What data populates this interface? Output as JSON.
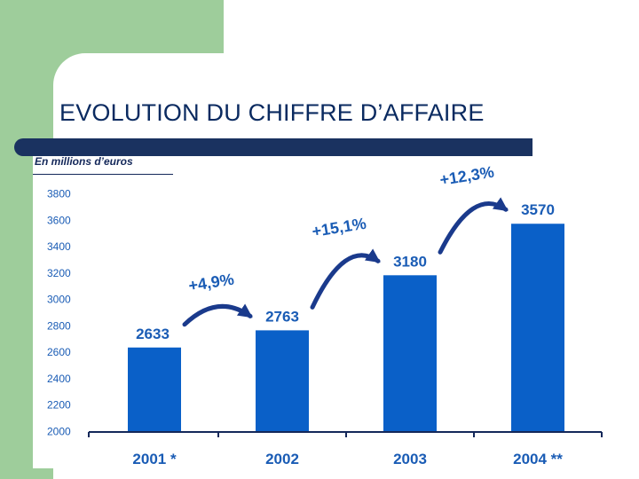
{
  "slide": {
    "title": "EVOLUTION DU CHIFFRE D’AFFAIRE",
    "unit_label": "En millions d’euros"
  },
  "colors": {
    "bar": "#0a60c8",
    "text": "#1a5cb5",
    "axis": "#14285a",
    "title_bar": "#1a3260",
    "green_block": "#9ecd9b"
  },
  "chart_data": {
    "type": "bar",
    "categories": [
      "2001 *",
      "2002",
      "2003",
      "2004 **"
    ],
    "values": [
      2633,
      2763,
      3180,
      3570
    ],
    "data_labels": [
      "2633",
      "2763",
      "3180",
      "3570"
    ],
    "ylim": [
      2000,
      3800
    ],
    "yticks": [
      2000,
      2200,
      2400,
      2600,
      2800,
      3000,
      3200,
      3400,
      3600,
      3800
    ],
    "ytick_labels": [
      "2000",
      "2200",
      "2400",
      "2600",
      "2800",
      "3000",
      "3200",
      "3400",
      "3600",
      "3800"
    ],
    "growth_annotations": [
      {
        "from": "2001 *",
        "to": "2002",
        "label": "+4,9%"
      },
      {
        "from": "2002",
        "to": "2003",
        "label": "+15,1%"
      },
      {
        "from": "2003",
        "to": "2004 **",
        "label": "+12,3%"
      }
    ],
    "grid": false,
    "title": "",
    "xlabel": "",
    "ylabel": ""
  }
}
